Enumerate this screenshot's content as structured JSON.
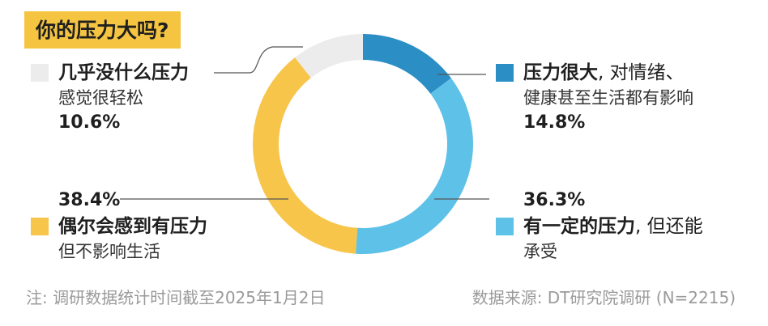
{
  "title": "你的压力大吗?",
  "footer": {
    "note": "注: 调研数据统计时间截至2025年1月2日",
    "source": "数据来源: DT研究院调研 (N=2215)"
  },
  "colors": {
    "high": "#2b8fc6",
    "some": "#5ec1e8",
    "occasional": "#f7c54a",
    "low": "#ececec",
    "badge": "#f5c542"
  },
  "legend": {
    "high": {
      "line1_bold": "压力很大",
      "line1_rest": ", 对情绪、",
      "line2": "健康甚至生活都有影响",
      "pct": "14.8%"
    },
    "some": {
      "line1_bold": "有一定的压力",
      "line1_rest": ", 但还能",
      "line2": "承受",
      "pct": "36.3%"
    },
    "occasional": {
      "line1_bold": "偶尔会感到有压力",
      "line1_rest": "",
      "line2": "但不影响生活",
      "pct": "38.4%"
    },
    "low": {
      "line1_bold": "几乎没什么压力",
      "line1_rest": "",
      "line2": "感觉很轻松",
      "pct": "10.6%"
    }
  },
  "chart_data": {
    "type": "pie",
    "title": "你的压力大吗?",
    "donut": true,
    "start": "top, clockwise",
    "slices": [
      {
        "label": "压力很大, 对情绪、健康甚至生活都有影响",
        "value": 14.8,
        "color": "#2b8fc6"
      },
      {
        "label": "有一定的压力, 但还能承受",
        "value": 36.3,
        "color": "#5ec1e8"
      },
      {
        "label": "偶尔会感到有压力 但不影响生活",
        "value": 38.4,
        "color": "#f7c54a"
      },
      {
        "label": "几乎没什么压力 感觉很轻松",
        "value": 10.6,
        "color": "#ececec"
      }
    ],
    "legend_placement": "around chart"
  }
}
